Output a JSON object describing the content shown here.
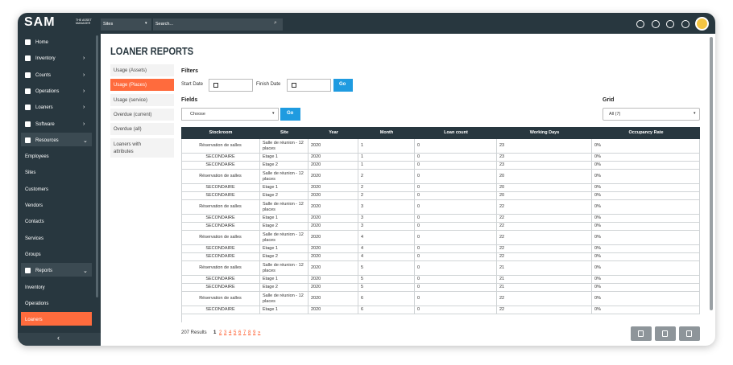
{
  "topbar": {
    "logo": "SAM",
    "logo_tagline": "THE ASSET MANAGER",
    "site_select": "Sites",
    "search_placeholder": "Search..."
  },
  "sidebar": {
    "top": [
      "Home"
    ],
    "menus": [
      "Inventory",
      "Counts",
      "Operations",
      "Loaners",
      "Software"
    ],
    "resources": {
      "label": "Resources",
      "items": [
        "Employees",
        "Sites",
        "Customers",
        "Vendors",
        "Contacts",
        "Services",
        "Groups"
      ]
    },
    "reports": {
      "label": "Reports",
      "items": [
        "Inventory",
        "Operations",
        "Loaners"
      ],
      "active_index": 2
    }
  },
  "page_title": "LOANER REPORTS",
  "tabs": {
    "items": [
      "Usage (Assets)",
      "Usage (Places)",
      "Usage (service)",
      "Overdue (current)",
      "Overdue (all)",
      "Loaners with attributes"
    ],
    "active_index": 1
  },
  "filters": {
    "title": "Filters",
    "start_label": "Start Date",
    "finish_label": "Finish Date",
    "go": "Go"
  },
  "fields": {
    "title": "Fields",
    "select": "Choose",
    "go": "Go"
  },
  "grid": {
    "title": "Grid",
    "select": "All (7)"
  },
  "table": {
    "headers": [
      "Stockroom",
      "Site",
      "Year",
      "Month",
      "Loan count",
      "Working Days",
      "Occupancy Rate"
    ],
    "rows": [
      [
        "Réservation de salles",
        "Salle de réunion - 12 places",
        2020,
        1,
        0,
        23,
        "0%"
      ],
      [
        "SECONDAIRE",
        "Etage 1",
        2020,
        1,
        0,
        23,
        "0%"
      ],
      [
        "SECONDAIRE",
        "Etage 2",
        2020,
        1,
        0,
        23,
        "0%"
      ],
      [
        "Réservation de salles",
        "Salle de réunion - 12 places",
        2020,
        2,
        0,
        20,
        "0%"
      ],
      [
        "SECONDAIRE",
        "Etage 1",
        2020,
        2,
        0,
        20,
        "0%"
      ],
      [
        "SECONDAIRE",
        "Etage 2",
        2020,
        2,
        0,
        20,
        "0%"
      ],
      [
        "Réservation de salles",
        "Salle de réunion - 12 places",
        2020,
        3,
        0,
        22,
        "0%"
      ],
      [
        "SECONDAIRE",
        "Etage 1",
        2020,
        3,
        0,
        22,
        "0%"
      ],
      [
        "SECONDAIRE",
        "Etage 2",
        2020,
        3,
        0,
        22,
        "0%"
      ],
      [
        "Réservation de salles",
        "Salle de réunion - 12 places",
        2020,
        4,
        0,
        22,
        "0%"
      ],
      [
        "SECONDAIRE",
        "Etage 1",
        2020,
        4,
        0,
        22,
        "0%"
      ],
      [
        "SECONDAIRE",
        "Etage 2",
        2020,
        4,
        0,
        22,
        "0%"
      ],
      [
        "Réservation de salles",
        "Salle de réunion - 12 places",
        2020,
        5,
        0,
        21,
        "0%"
      ],
      [
        "SECONDAIRE",
        "Etage 1",
        2020,
        5,
        0,
        21,
        "0%"
      ],
      [
        "SECONDAIRE",
        "Etage 2",
        2020,
        5,
        0,
        21,
        "0%"
      ],
      [
        "Réservation de salles",
        "Salle de réunion - 12 places",
        2020,
        6,
        0,
        22,
        "0%"
      ],
      [
        "SECONDAIRE",
        "Etage 1",
        2020,
        6,
        0,
        22,
        "0%"
      ]
    ]
  },
  "footer": {
    "results": "207 Results",
    "pages": [
      1,
      2,
      3,
      4,
      5,
      6,
      7,
      8,
      9,
      "»"
    ],
    "current_index": 0
  }
}
